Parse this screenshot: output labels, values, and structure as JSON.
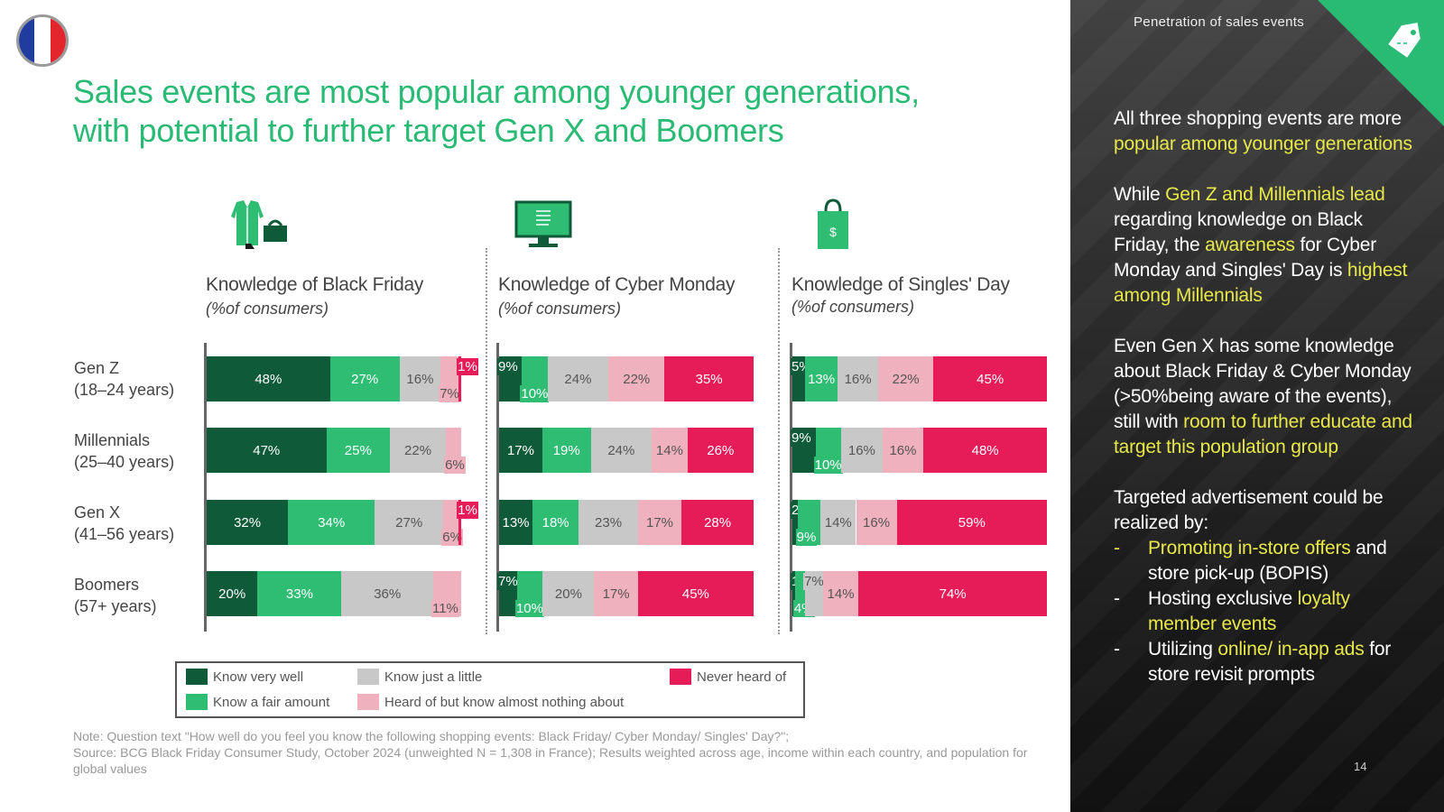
{
  "title": {
    "line1": "Sales events are most popular among younger generations,",
    "line2": "with potential to further target Gen X and Boomers"
  },
  "colors": {
    "very_well": "#0f5a38",
    "fair": "#2fbd74",
    "little": "#c8c8c8",
    "heard": "#efb1bd",
    "never": "#e51c58",
    "accent": "#29ba74",
    "highlight": "#e8e84a"
  },
  "rows": [
    {
      "name": "Gen Z",
      "age": "(18–24 years)"
    },
    {
      "name": "Millennials",
      "age": "(25–40 years)"
    },
    {
      "name": "Gen X",
      "age": "(41–56 years)"
    },
    {
      "name": "Boomers",
      "age": "(57+ years)"
    }
  ],
  "chart_data": [
    {
      "type": "stacked-bar-horizontal",
      "title": "Knowledge of Black Friday",
      "subtitle": "(%of consumers)",
      "icon": "clothing-shopping-icon",
      "categories": [
        "Gen Z",
        "Millennials",
        "Gen X",
        "Boomers"
      ],
      "series": [
        {
          "name": "Know very well",
          "values": [
            48,
            47,
            32,
            20
          ]
        },
        {
          "name": "Know a fair amount",
          "values": [
            27,
            25,
            34,
            33
          ]
        },
        {
          "name": "Know just a little",
          "values": [
            16,
            22,
            27,
            36
          ]
        },
        {
          "name": "Heard of but know almost nothing about",
          "values": [
            7,
            6,
            6,
            11
          ]
        },
        {
          "name": "Never heard of",
          "values": [
            1,
            0,
            1,
            0
          ]
        }
      ],
      "labels": [
        [
          "48%",
          "27%",
          "16%",
          "7%",
          "1%"
        ],
        [
          "47%",
          "25%",
          "22%",
          "6%",
          ""
        ],
        [
          "32%",
          "34%",
          "27%",
          "6%",
          "1%"
        ],
        [
          "20%",
          "33%",
          "36%",
          "11%",
          ""
        ]
      ]
    },
    {
      "type": "stacked-bar-horizontal",
      "title": "Knowledge of Cyber Monday",
      "subtitle": "(%of consumers)",
      "icon": "computer-monitor-icon",
      "categories": [
        "Gen Z",
        "Millennials",
        "Gen X",
        "Boomers"
      ],
      "series": [
        {
          "name": "Know very well",
          "values": [
            9,
            17,
            13,
            7
          ]
        },
        {
          "name": "Know a fair amount",
          "values": [
            10,
            19,
            18,
            10
          ]
        },
        {
          "name": "Know just a little",
          "values": [
            24,
            24,
            23,
            20
          ]
        },
        {
          "name": "Heard of but know almost nothing about",
          "values": [
            22,
            14,
            17,
            17
          ]
        },
        {
          "name": "Never heard of",
          "values": [
            35,
            26,
            28,
            45
          ]
        }
      ],
      "labels": [
        [
          "9%",
          "10%",
          "24%",
          "22%",
          "35%"
        ],
        [
          "17%",
          "19%",
          "24%",
          "14%",
          "26%"
        ],
        [
          "13%",
          "18%",
          "23%",
          "17%",
          "28%"
        ],
        [
          "7%",
          "10%",
          "20%",
          "17%",
          "45%"
        ]
      ]
    },
    {
      "type": "stacked-bar-horizontal",
      "title": "Knowledge of Singles' Day",
      "subtitle": "(%of consumers)",
      "icon": "shopping-bag-icon",
      "categories": [
        "Gen Z",
        "Millennials",
        "Gen X",
        "Boomers"
      ],
      "series": [
        {
          "name": "Know very well",
          "values": [
            5,
            9,
            2,
            1
          ]
        },
        {
          "name": "Know a fair amount",
          "values": [
            13,
            10,
            9,
            4
          ]
        },
        {
          "name": "Know just a little",
          "values": [
            16,
            16,
            14,
            7
          ]
        },
        {
          "name": "Heard of but know almost nothing about",
          "values": [
            22,
            16,
            16,
            14
          ]
        },
        {
          "name": "Never heard of",
          "values": [
            45,
            48,
            59,
            74
          ]
        }
      ],
      "labels": [
        [
          "5%",
          "13%",
          "16%",
          "22%",
          "45%"
        ],
        [
          "9%",
          "10%",
          "16%",
          "16%",
          "48%"
        ],
        [
          "2%",
          "9%",
          "14%",
          "16%",
          "59%"
        ],
        [
          "1%",
          "4%",
          "7%",
          "14%",
          "74%"
        ]
      ]
    }
  ],
  "legend": [
    {
      "label": "Know very well",
      "color": "#0f5a38"
    },
    {
      "label": "Know just a little",
      "color": "#c8c8c8"
    },
    {
      "label": "Never heard of",
      "color": "#e51c58"
    },
    {
      "label": "Know a fair amount",
      "color": "#2fbd74"
    },
    {
      "label": "Heard of but know almost nothing about",
      "color": "#efb1bd"
    }
  ],
  "note": "Note: Question text \"How well do you feel you know the following shopping events: Black Friday/ Cyber Monday/ Singles' Day?\";",
  "source": "Source: BCG Black Friday Consumer Study, October 2024 (unweighted N = 1,308 in France); Results weighted across age, income within each country, and population for global values",
  "panel": {
    "header": "Penetration of sales events",
    "p1": {
      "a": "All three shopping events are more ",
      "b": "popular among younger generations"
    },
    "p2": {
      "a": "While ",
      "b": "Gen Z and Millennials lead",
      "c": " regarding knowledge on Black Friday, the ",
      "d": "awareness",
      "e": " for Cyber Monday and Singles' Day is ",
      "f": "highest among Millennials"
    },
    "p3": {
      "a": "Even Gen X has some knowledge about Black Friday & Cyber Monday (>50%being aware of the events), still with ",
      "b": "room to further educate and target this population group"
    },
    "p4": "Targeted advertisement could be realized by:",
    "bullets": [
      {
        "dash": "-",
        "a": "Promoting in-store offers",
        "b": " and store pick-up (BOPIS)",
        "a_hl": true,
        "b_hl": false
      },
      {
        "dash": "-",
        "a": "Hosting exclusive ",
        "b": "loyalty member events",
        "a_hl": false,
        "b_hl": true
      },
      {
        "dash": "-",
        "a": "Utilizing ",
        "b": "online/ in-app ads",
        "c": " for store revisit prompts"
      }
    ]
  },
  "page_number": "14"
}
